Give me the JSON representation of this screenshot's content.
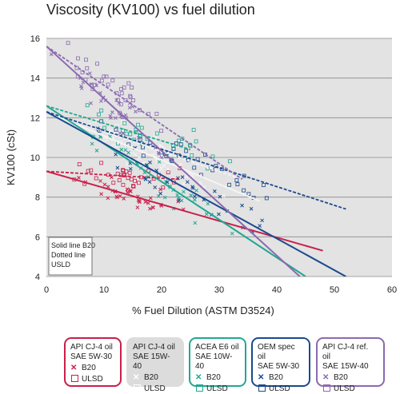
{
  "chart_data": {
    "type": "scatter",
    "title": "Viscosity (KV100) vs fuel dilution",
    "xlabel": "% Fuel Dilution (ASTM D3524)",
    "ylabel": "KV100 (cSt)",
    "xlim": [
      0,
      60
    ],
    "ylim": [
      4,
      16
    ],
    "x_ticks": [
      "0",
      "10",
      "20",
      "30",
      "40",
      "50",
      "60"
    ],
    "y_ticks": [
      "4",
      "6",
      "8",
      "10",
      "12",
      "14",
      "16"
    ],
    "grid": "horizontal",
    "annotation": [
      "Solid line B20",
      "Dotted line",
      "USLD"
    ],
    "series": [
      {
        "name": "API CJ-4 oil SAE 5W-30",
        "color": "#c8204a",
        "key": "red",
        "b20_fit": [
          [
            0,
            9.3
          ],
          [
            48,
            5.3
          ]
        ],
        "ulsd_fit": [
          [
            0,
            9.3
          ],
          [
            23,
            8.9
          ]
        ],
        "center": [
          16,
          8.4
        ],
        "spread": [
          9,
          1.1
        ]
      },
      {
        "name": "API CJ-4 oil SAE 15W-40",
        "color": "#f4f4f4",
        "key": "white",
        "b20_fit": [
          [
            0,
            12.3
          ],
          [
            37,
            7.8
          ]
        ],
        "ulsd_fit": [
          [
            0,
            12.3
          ],
          [
            33,
            9.0
          ]
        ],
        "center": [
          18,
          10.4
        ],
        "spread": [
          10,
          1.6
        ]
      },
      {
        "name": "ACEA E6 oil SAE 10W-40",
        "color": "#21a890",
        "key": "teal",
        "b20_fit": [
          [
            0,
            12.6
          ],
          [
            45,
            4.0
          ]
        ],
        "ulsd_fit": [
          [
            0,
            12.6
          ],
          [
            25,
            10.4
          ]
        ],
        "center": [
          20,
          9.5
        ],
        "spread": [
          10,
          1.7
        ]
      },
      {
        "name": "OEM spec oil SAE 5W-30",
        "color": "#1a4a8e",
        "key": "navy",
        "b20_fit": [
          [
            0,
            12.3
          ],
          [
            52,
            4.0
          ]
        ],
        "ulsd_fit": [
          [
            0,
            12.3
          ],
          [
            52,
            7.4
          ]
        ],
        "center": [
          24,
          8.6
        ],
        "spread": [
          13,
          1.9
        ]
      },
      {
        "name": "API CJ-4 ref. oil SAE 15W-40",
        "color": "#8a6ab0",
        "key": "purple",
        "b20_fit": [
          [
            0,
            15.6
          ],
          [
            44,
            4.0
          ]
        ],
        "ulsd_fit": [
          [
            0,
            15.6
          ],
          [
            34,
            8.9
          ]
        ],
        "center": [
          12,
          11.2
        ],
        "spread": [
          8,
          2.0
        ]
      }
    ]
  },
  "legend": [
    {
      "line1": "API CJ-4 oil",
      "line2": "SAE 5W-30",
      "b20": "B20",
      "ulsd": "ULSD"
    },
    {
      "line1": "API CJ-4 oil",
      "line2": "SAE 15W-40",
      "b20": "B20",
      "ulsd": "ULSD"
    },
    {
      "line1": "ACEA E6 oil",
      "line2": "SAE 10W-40",
      "b20": "B20",
      "ulsd": "ULSD"
    },
    {
      "line1": "OEM spec oil",
      "line2": "SAE 5W-30",
      "b20": "B20",
      "ulsd": "ULSD"
    },
    {
      "line1": "API CJ-4 ref. oil",
      "line2": "SAE 15W-40",
      "b20": "B20",
      "ulsd": "ULSD"
    }
  ],
  "colors": {
    "plot_bg": "#e3e3e3",
    "grid": "#8a8a8a",
    "white_legend_bg": "#dcdcdc"
  }
}
